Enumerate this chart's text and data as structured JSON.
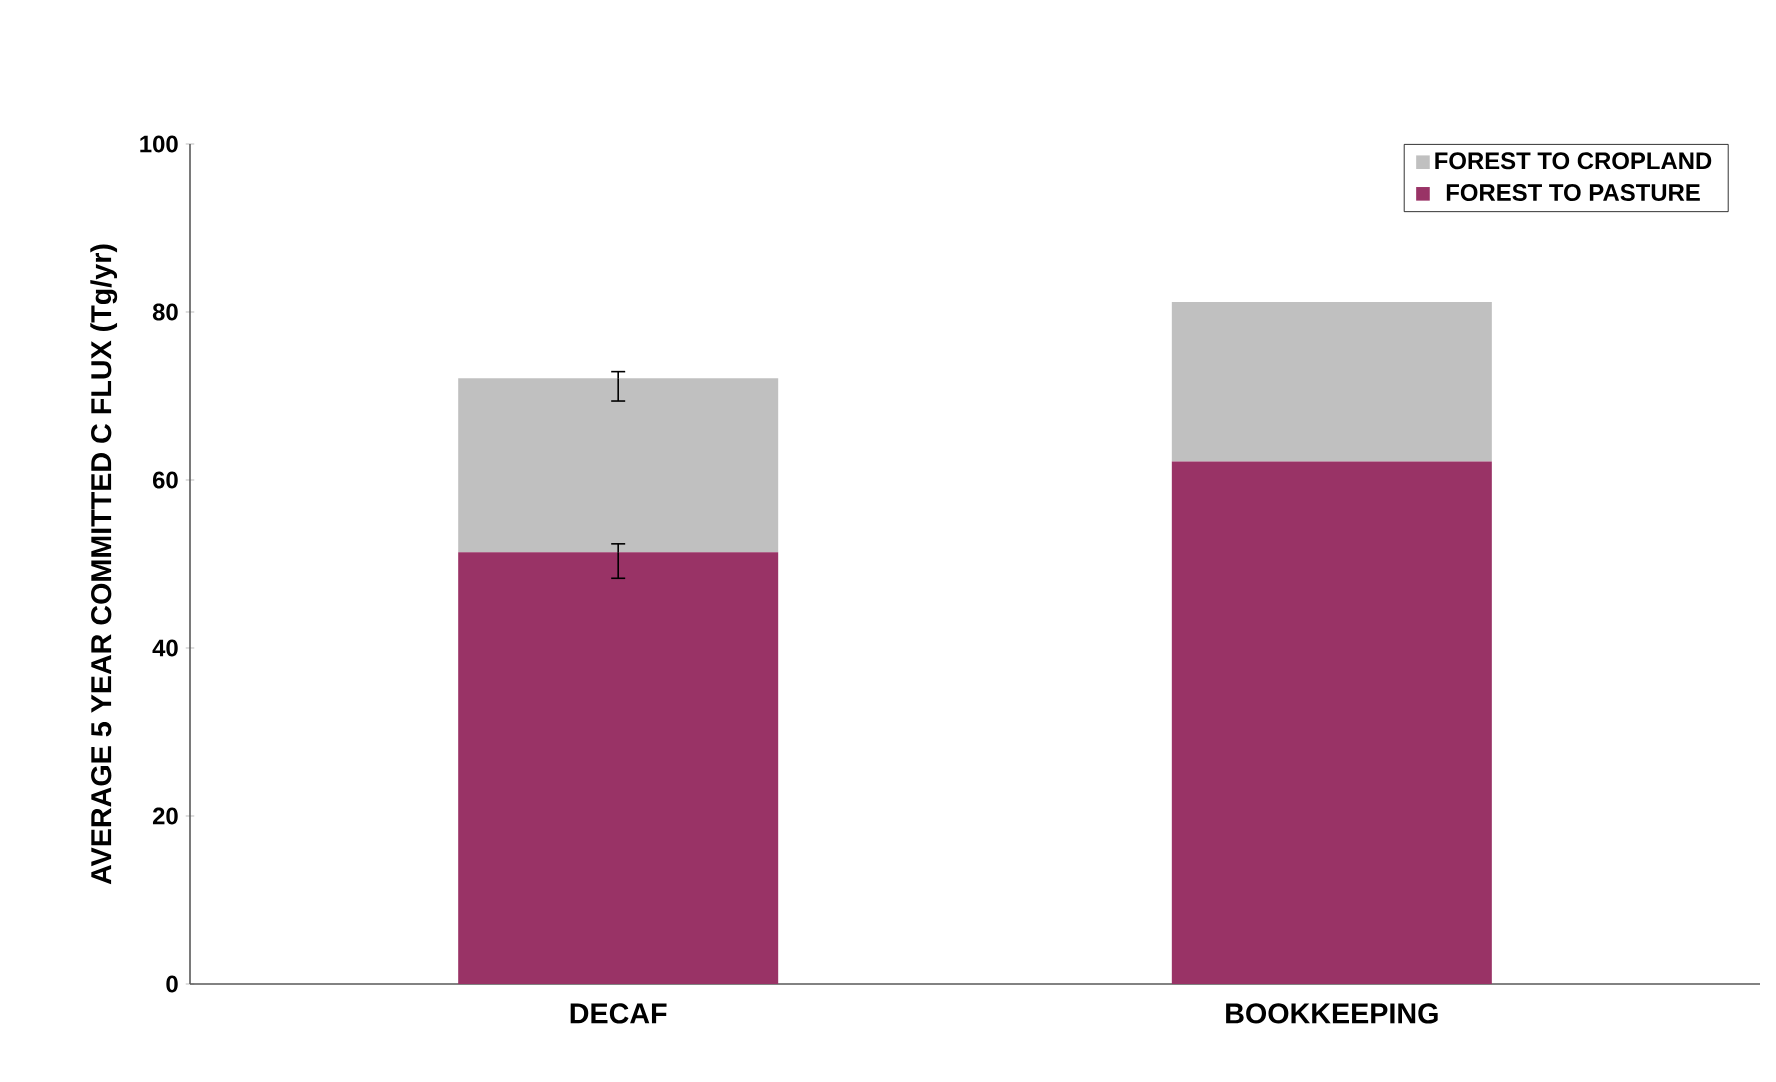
{
  "chart_data": {
    "type": "bar",
    "stacked": true,
    "ylabel": "AVERAGE 5 YEAR COMMITTED C FLUX (Tg/yr)",
    "categories": [
      "DECAF",
      "BOOKKEEPING"
    ],
    "series": [
      {
        "name": "FOREST TO PASTURE",
        "color": "#993366",
        "values": [
          51.4,
          62.2
        ],
        "errors": [
          [
            48.3,
            52.4
          ],
          null
        ]
      },
      {
        "name": "FOREST TO CROPLAND",
        "color": "#c0c0c0",
        "values": [
          20.7,
          19.0
        ],
        "errors": [
          [
            69.4,
            72.9
          ],
          null
        ]
      }
    ],
    "ylim": [
      0,
      100
    ],
    "yticks": [
      0,
      20,
      40,
      60,
      80,
      100
    ],
    "legend": "top right",
    "grid": false
  }
}
